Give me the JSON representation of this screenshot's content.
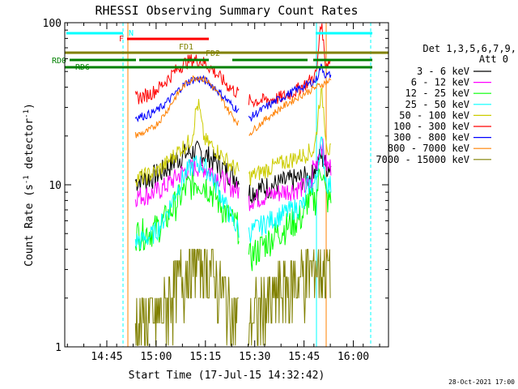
{
  "chart_data": {
    "type": "line",
    "title": "RHESSI Observing Summary Count Rates",
    "xlabel": "Start Time (17-Jul-15 14:32:42)",
    "ylabel_main": "Count Rate (s",
    "ylabel_sup": "-1",
    "ylabel_mid": " detector",
    "ylabel_end": ")",
    "y_scale": "log",
    "ylim": [
      1,
      100
    ],
    "xlim_minutes": [
      14.5,
      113.0
    ],
    "y_ticks": [
      {
        "v": 1,
        "label": "1"
      },
      {
        "v": 10,
        "label": "10"
      },
      {
        "v": 100,
        "label": "100"
      }
    ],
    "x_ticks": [
      {
        "m": 27.3,
        "label": "14:45"
      },
      {
        "m": 42.3,
        "label": "15:00"
      },
      {
        "m": 57.3,
        "label": "15:15"
      },
      {
        "m": 72.3,
        "label": "15:30"
      },
      {
        "m": 87.3,
        "label": "15:45"
      },
      {
        "m": 102.3,
        "label": "16:00"
      }
    ],
    "legend_header": [
      "Det 1,3,5,6,7,9,",
      "Att 0"
    ],
    "series": [
      {
        "name": "3 - 6 keV",
        "color": "#000000"
      },
      {
        "name": "6 - 12 keV",
        "color": "#ff00ff"
      },
      {
        "name": "12 - 25 keV",
        "color": "#00ff00"
      },
      {
        "name": "25 - 50 keV",
        "color": "#00ffff"
      },
      {
        "name": "50 - 100 keV",
        "color": "#cccc00"
      },
      {
        "name": "100 - 300 keV",
        "color": "#ff0000"
      },
      {
        "name": "300 - 800 keV",
        "color": "#0000ff"
      },
      {
        "name": "800 - 7000 keV",
        "color": "#ff8000"
      },
      {
        "name": "7000 - 15000 keV",
        "color": "#808000"
      }
    ],
    "flag_labels": [
      {
        "text": "N",
        "color": "#00ffff"
      },
      {
        "text": "F",
        "color": "#ff0000"
      },
      {
        "text": "FD1",
        "color": "#808000"
      },
      {
        "text": "FD2",
        "color": "#808000"
      },
      {
        "text": "RD0",
        "color": "#008000"
      },
      {
        "text": "RD6",
        "color": "#008000"
      }
    ],
    "grid": false,
    "legend_placement": "right"
  },
  "footer": {
    "date": "28-Oct-2021 17:00"
  }
}
